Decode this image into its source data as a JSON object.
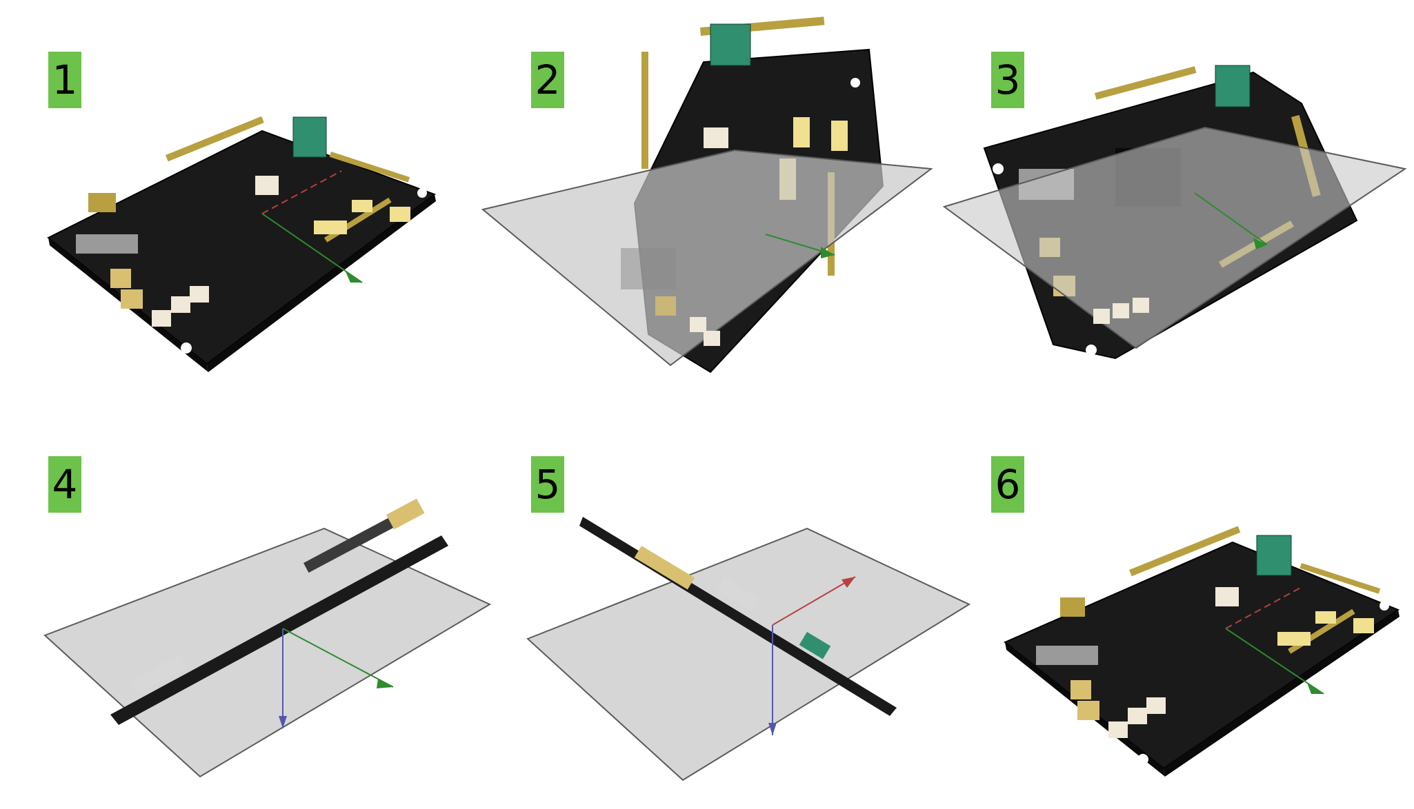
{
  "colors": {
    "badge_bg": "#6cc24a",
    "badge_text": "#000000",
    "board": "#1a1a1a",
    "plane_fill": "#c8c8c8",
    "plane_stroke": "#5a5a5a",
    "axis_x": "#b84040",
    "axis_y": "#2e8b2e",
    "axis_z": "#5555b0",
    "terminal_block": "#2f8f6f",
    "connector": "#f0e090",
    "pin_header": "#b8a040"
  },
  "icons": {
    "board": "pcb-board-icon",
    "plane": "section-plane-icon",
    "axis": "axis-arrow-icon"
  },
  "panels": [
    {
      "label": "1",
      "state": "board-only"
    },
    {
      "label": "2",
      "state": "board-with-plane"
    },
    {
      "label": "3",
      "state": "board-with-plane"
    },
    {
      "label": "4",
      "state": "edge-on-with-plane"
    },
    {
      "label": "5",
      "state": "edge-on-with-plane"
    },
    {
      "label": "6",
      "state": "board-only"
    }
  ]
}
